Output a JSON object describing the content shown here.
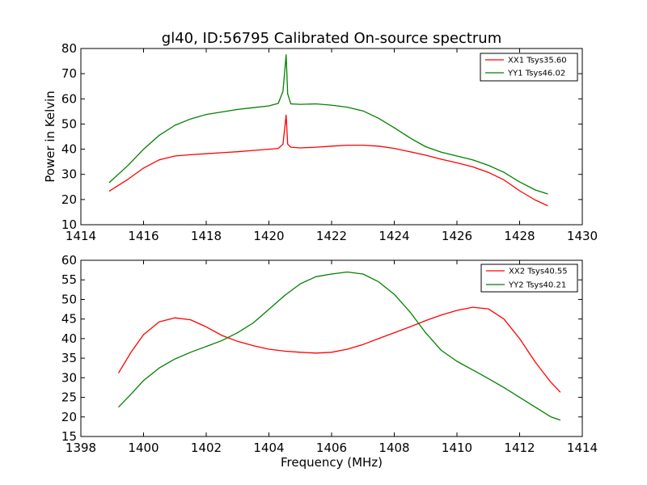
{
  "chart_data": [
    {
      "type": "line",
      "title": "gl40, ID:56795 Calibrated On-source spectrum",
      "xlabel": "",
      "ylabel": "Power in Kelvin",
      "xlim": [
        1414,
        1430
      ],
      "ylim": [
        10,
        80
      ],
      "xticks": [
        "1414",
        "1416",
        "1418",
        "1420",
        "1422",
        "1424",
        "1426",
        "1428",
        "1430"
      ],
      "yticks": [
        "10",
        "20",
        "30",
        "40",
        "50",
        "60",
        "70",
        "80"
      ],
      "legend_position": "top-right",
      "series": [
        {
          "name": "XX1 Tsys35.60",
          "color": "#ff0000",
          "x": [
            1414.9,
            1415.5,
            1416.0,
            1416.5,
            1417.0,
            1417.5,
            1418.0,
            1418.5,
            1419.0,
            1419.5,
            1420.0,
            1420.3,
            1420.45,
            1420.55,
            1420.6,
            1420.7,
            1421.0,
            1421.5,
            1422.0,
            1422.5,
            1423.0,
            1423.5,
            1424.0,
            1424.5,
            1425.0,
            1425.5,
            1426.0,
            1426.5,
            1427.0,
            1427.5,
            1428.0,
            1428.5,
            1428.9
          ],
          "values": [
            23.3,
            28.0,
            32.5,
            35.8,
            37.3,
            37.8,
            38.2,
            38.6,
            39.0,
            39.5,
            40.0,
            40.3,
            42.0,
            53.5,
            42.0,
            40.8,
            40.5,
            40.8,
            41.2,
            41.6,
            41.6,
            41.2,
            40.3,
            39.0,
            37.6,
            36.0,
            34.6,
            33.0,
            30.8,
            27.8,
            23.5,
            19.8,
            17.5
          ]
        },
        {
          "name": "YY1 Tsys46.02",
          "color": "#008000",
          "x": [
            1414.9,
            1415.5,
            1416.0,
            1416.5,
            1417.0,
            1417.5,
            1418.0,
            1418.5,
            1419.0,
            1419.5,
            1420.0,
            1420.3,
            1420.45,
            1420.55,
            1420.6,
            1420.7,
            1421.0,
            1421.5,
            1422.0,
            1422.5,
            1423.0,
            1423.5,
            1424.0,
            1424.5,
            1425.0,
            1425.5,
            1426.0,
            1426.5,
            1427.0,
            1427.5,
            1428.0,
            1428.5,
            1428.9
          ],
          "values": [
            26.7,
            33.5,
            40.0,
            45.5,
            49.5,
            52.0,
            53.8,
            54.8,
            55.8,
            56.5,
            57.2,
            58.2,
            63.0,
            77.5,
            62.0,
            58.0,
            57.8,
            58.0,
            57.5,
            56.7,
            55.2,
            52.3,
            48.5,
            44.5,
            41.0,
            38.8,
            37.3,
            35.8,
            33.6,
            30.8,
            27.0,
            23.8,
            22.2
          ]
        }
      ]
    },
    {
      "type": "line",
      "title": "",
      "xlabel": "Frequency (MHz)",
      "ylabel": "",
      "xlim": [
        1398,
        1414
      ],
      "ylim": [
        15,
        60
      ],
      "xticks": [
        "1398",
        "1400",
        "1402",
        "1404",
        "1406",
        "1408",
        "1410",
        "1412",
        "1414"
      ],
      "yticks": [
        "15",
        "20",
        "25",
        "30",
        "35",
        "40",
        "45",
        "50",
        "55",
        "60"
      ],
      "legend_position": "top-right",
      "series": [
        {
          "name": "XX2 Tsys40.55",
          "color": "#ff0000",
          "x": [
            1399.2,
            1399.6,
            1400.0,
            1400.5,
            1401.0,
            1401.5,
            1402.0,
            1402.5,
            1403.0,
            1403.5,
            1404.0,
            1404.5,
            1405.0,
            1405.5,
            1406.0,
            1406.5,
            1407.0,
            1407.5,
            1408.0,
            1408.5,
            1409.0,
            1409.5,
            1410.0,
            1410.5,
            1411.0,
            1411.5,
            1412.0,
            1412.5,
            1413.0,
            1413.3
          ],
          "values": [
            31.2,
            36.5,
            41.0,
            44.3,
            45.3,
            44.8,
            43.0,
            40.8,
            39.3,
            38.2,
            37.3,
            36.8,
            36.5,
            36.3,
            36.5,
            37.3,
            38.5,
            40.0,
            41.5,
            43.0,
            44.6,
            46.0,
            47.2,
            48.0,
            47.6,
            45.0,
            40.0,
            34.0,
            28.8,
            26.3
          ]
        },
        {
          "name": "YY2 Tsys40.21",
          "color": "#008000",
          "x": [
            1399.2,
            1399.6,
            1400.0,
            1400.5,
            1401.0,
            1401.5,
            1402.0,
            1402.5,
            1403.0,
            1403.5,
            1404.0,
            1404.5,
            1405.0,
            1405.5,
            1406.0,
            1406.5,
            1407.0,
            1407.5,
            1408.0,
            1408.5,
            1409.0,
            1409.5,
            1410.0,
            1410.5,
            1411.0,
            1411.5,
            1412.0,
            1412.5,
            1413.0,
            1413.3
          ],
          "values": [
            22.5,
            25.8,
            29.3,
            32.5,
            34.8,
            36.5,
            38.0,
            39.5,
            41.5,
            44.0,
            47.5,
            51.0,
            54.0,
            55.8,
            56.5,
            57.0,
            56.5,
            54.5,
            51.3,
            46.8,
            41.5,
            37.0,
            34.2,
            32.0,
            29.8,
            27.5,
            25.0,
            22.5,
            20.0,
            19.2
          ]
        }
      ]
    }
  ]
}
